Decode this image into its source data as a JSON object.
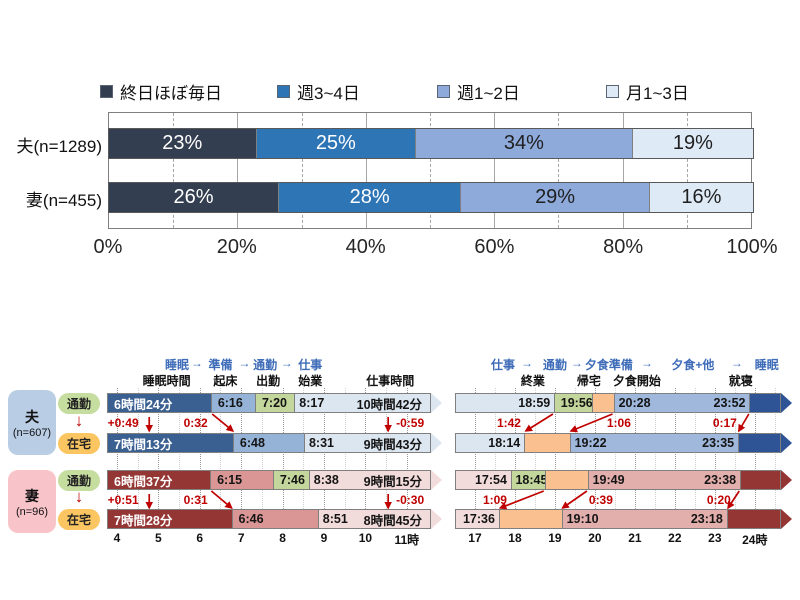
{
  "panel": {
    "modes": {
      "commute": "通勤",
      "home": "在宅"
    },
    "commute_color": "#C6DDA0",
    "home_color": "#FBC661",
    "arrow_color": "#C00000",
    "groups": [
      {
        "name": "夫",
        "n": "(n=607)",
        "color": "#B9CDE5"
      },
      {
        "name": "妻",
        "n": "(n=96)",
        "color": "#F8C3C9"
      }
    ]
  },
  "chart_data": [
    {
      "type": "bar",
      "orientation": "horizontal-stacked",
      "categories": [
        "夫(n=1289)",
        "妻(n=455)"
      ],
      "series": [
        {
          "name": "終日ほぼ毎日",
          "color": "#333F50",
          "text_color": "#FFFFFF",
          "values": [
            23,
            26
          ]
        },
        {
          "name": "週3~4日",
          "color": "#2E75B6",
          "text_color": "#FFFFFF",
          "values": [
            25,
            28
          ]
        },
        {
          "name": "週1~2日",
          "color": "#8EAADB",
          "text_color": "#1F1F1F",
          "values": [
            34,
            29
          ]
        },
        {
          "name": "月1~3日",
          "color": "#DEEAF6",
          "text_color": "#1F1F1F",
          "values": [
            19,
            16
          ]
        }
      ],
      "value_suffix": "%",
      "x_ticks": [
        "0%",
        "20%",
        "40%",
        "60%",
        "80%",
        "100%"
      ],
      "xlim": [
        0,
        100
      ],
      "legend_position": "top",
      "gridlines": "10%-dashed-20%-solid"
    },
    {
      "type": "timeline",
      "id": "morning",
      "stage_header": [
        {
          "text": "睡眠",
          "t": 5.45
        },
        {
          "text": "→",
          "t": 5.93
        },
        {
          "text": "準備",
          "t": 6.5
        },
        {
          "text": "→",
          "t": 7.08
        },
        {
          "text": "通勤",
          "t": 7.58
        },
        {
          "text": "→",
          "t": 8.1
        },
        {
          "text": "仕事",
          "t": 8.67
        }
      ],
      "col_labels": [
        {
          "text": "睡眠時間",
          "t": 5.2
        },
        {
          "text": "起床",
          "t": 6.62
        },
        {
          "text": "出勤",
          "t": 7.65
        },
        {
          "text": "始業",
          "t": 8.67
        },
        {
          "text": "仕事時間",
          "t": 10.6
        }
      ],
      "axis": {
        "min": 3.76,
        "max": 11.56,
        "ticks": [
          {
            "t": 4,
            "label": "4"
          },
          {
            "t": 5,
            "label": "5"
          },
          {
            "t": 6,
            "label": "6"
          },
          {
            "t": 7,
            "label": "7"
          },
          {
            "t": 8,
            "label": "8"
          },
          {
            "t": 9,
            "label": "9"
          },
          {
            "t": 10,
            "label": "10"
          },
          {
            "t": 11,
            "label": "11時"
          }
        ]
      },
      "rows": [
        {
          "group": "夫",
          "mode": "通勤",
          "segments": [
            {
              "t0": 3.76,
              "t1": 6.267,
              "color": "#3A5F91",
              "text_color": "#FFFFFF",
              "labels": [
                {
                  "text": "6時間24分",
                  "side": "left"
                }
              ]
            },
            {
              "t0": 6.267,
              "t1": 7.333,
              "color": "#95B3D7",
              "labels": [
                {
                  "text": "6:16",
                  "side": "left"
                }
              ]
            },
            {
              "t0": 7.333,
              "t1": 8.283,
              "color": "#C3D69B",
              "labels": [
                {
                  "text": "7:20",
                  "side": "left"
                }
              ]
            },
            {
              "t0": 8.283,
              "t1": 11.56,
              "color": "#DCE6F1",
              "tip": true,
              "labels": [
                {
                  "text": "8:17",
                  "side": "left"
                },
                {
                  "text": "10時間42分",
                  "side": "right"
                }
              ]
            }
          ]
        },
        {
          "group": "夫",
          "mode": "在宅",
          "segments": [
            {
              "t0": 3.76,
              "t1": 6.8,
              "color": "#3A5F91",
              "text_color": "#FFFFFF",
              "labels": [
                {
                  "text": "7時間13分",
                  "side": "left"
                }
              ]
            },
            {
              "t0": 6.8,
              "t1": 8.517,
              "color": "#95B3D7",
              "labels": [
                {
                  "text": "6:48",
                  "side": "left"
                }
              ]
            },
            {
              "t0": 8.517,
              "t1": 11.56,
              "color": "#DCE6F1",
              "tip": true,
              "labels": [
                {
                  "text": "8:31",
                  "side": "left"
                },
                {
                  "text": "9時間43分",
                  "side": "right"
                }
              ]
            }
          ]
        },
        {
          "group": "妻",
          "mode": "通勤",
          "segments": [
            {
              "t0": 3.76,
              "t1": 6.25,
              "color": "#943634",
              "text_color": "#FFFFFF",
              "labels": [
                {
                  "text": "6時間37分",
                  "side": "left"
                }
              ]
            },
            {
              "t0": 6.25,
              "t1": 7.767,
              "color": "#D99694",
              "labels": [
                {
                  "text": "6:15",
                  "side": "left"
                }
              ]
            },
            {
              "t0": 7.767,
              "t1": 8.633,
              "color": "#C3D69B",
              "labels": [
                {
                  "text": "7:46",
                  "side": "left"
                }
              ]
            },
            {
              "t0": 8.633,
              "t1": 11.56,
              "color": "#F2DCDB",
              "tip": true,
              "labels": [
                {
                  "text": "8:38",
                  "side": "left"
                },
                {
                  "text": "9時間15分",
                  "side": "right"
                }
              ]
            }
          ]
        },
        {
          "group": "妻",
          "mode": "在宅",
          "segments": [
            {
              "t0": 3.76,
              "t1": 6.767,
              "color": "#943634",
              "text_color": "#FFFFFF",
              "labels": [
                {
                  "text": "7時間28分",
                  "side": "left"
                }
              ]
            },
            {
              "t0": 6.767,
              "t1": 8.85,
              "color": "#D99694",
              "labels": [
                {
                  "text": "6:46",
                  "side": "left"
                }
              ]
            },
            {
              "t0": 8.85,
              "t1": 11.56,
              "color": "#F2DCDB",
              "tip": true,
              "labels": [
                {
                  "text": "8:51",
                  "side": "left"
                },
                {
                  "text": "8時間45分",
                  "side": "right"
                }
              ]
            }
          ]
        }
      ],
      "annotations": [
        {
          "gap": 0,
          "text": "+0:49",
          "t": 4.15,
          "arrow": {
            "t0": 4.78,
            "t1": 4.78
          }
        },
        {
          "gap": 0,
          "text": "0:32",
          "t": 5.9,
          "arrow": {
            "t0": 6.3,
            "t1": 6.8
          }
        },
        {
          "gap": 0,
          "text": "-0:59",
          "t": 11.08,
          "arrow": {
            "t0": 10.55,
            "t1": 10.55
          }
        },
        {
          "gap": 1,
          "text": "+0:51",
          "t": 4.15,
          "arrow": {
            "t0": 4.78,
            "t1": 4.78
          }
        },
        {
          "gap": 1,
          "text": "0:31",
          "t": 5.9,
          "arrow": {
            "t0": 6.28,
            "t1": 6.77
          }
        },
        {
          "gap": 1,
          "text": "-0:30",
          "t": 11.08,
          "arrow": {
            "t0": 10.55,
            "t1": 10.55
          }
        }
      ]
    },
    {
      "type": "timeline",
      "id": "evening",
      "stage_header": [
        {
          "text": "仕事",
          "t": 17.7
        },
        {
          "text": "→",
          "t": 18.3
        },
        {
          "text": "通勤",
          "t": 19.0
        },
        {
          "text": "→",
          "t": 19.55
        },
        {
          "text": "夕食準備",
          "t": 20.35
        },
        {
          "text": "→",
          "t": 21.3
        },
        {
          "text": "夕食+他",
          "t": 22.45
        },
        {
          "text": "→",
          "t": 23.55
        },
        {
          "text": "睡眠",
          "t": 24.3
        }
      ],
      "col_labels": [
        {
          "text": "終業",
          "t": 18.45
        },
        {
          "text": "帰宅",
          "t": 19.85
        },
        {
          "text": "夕食開始",
          "t": 21.05
        },
        {
          "text": "就寝",
          "t": 23.65
        }
      ],
      "axis": {
        "min": 16.5,
        "max": 24.63,
        "ticks": [
          {
            "t": 17,
            "label": "17"
          },
          {
            "t": 18,
            "label": "18"
          },
          {
            "t": 19,
            "label": "19"
          },
          {
            "t": 20,
            "label": "20"
          },
          {
            "t": 21,
            "label": "21"
          },
          {
            "t": 22,
            "label": "22"
          },
          {
            "t": 23,
            "label": "23"
          },
          {
            "t": 24,
            "label": "24時"
          }
        ]
      },
      "rows": [
        {
          "group": "夫",
          "mode": "通勤",
          "segments": [
            {
              "t0": 16.5,
              "t1": 18.983,
              "color": "#DCE6F1",
              "labels": [
                {
                  "text": "18:59",
                  "side": "right"
                }
              ]
            },
            {
              "t0": 18.983,
              "t1": 19.933,
              "color": "#C3D69B",
              "labels": [
                {
                  "text": "19:56",
                  "side": "center"
                }
              ]
            },
            {
              "t0": 19.933,
              "t1": 20.467,
              "color": "#FAC090",
              "labels": []
            },
            {
              "t0": 20.467,
              "t1": 23.867,
              "color": "#9FB8DB",
              "labels": [
                {
                  "text": "20:28",
                  "side": "left"
                },
                {
                  "text": "23:52",
                  "side": "right"
                }
              ]
            },
            {
              "t0": 23.867,
              "t1": 24.63,
              "color": "#2F5496",
              "tip": true,
              "labels": []
            }
          ]
        },
        {
          "group": "夫",
          "mode": "在宅",
          "segments": [
            {
              "t0": 16.5,
              "t1": 18.233,
              "color": "#DCE6F1",
              "labels": [
                {
                  "text": "18:14",
                  "side": "right"
                }
              ]
            },
            {
              "t0": 18.233,
              "t1": 19.367,
              "color": "#FAC090",
              "labels": []
            },
            {
              "t0": 19.367,
              "t1": 23.583,
              "color": "#9FB8DB",
              "labels": [
                {
                  "text": "19:22",
                  "side": "left"
                },
                {
                  "text": "23:35",
                  "side": "right"
                }
              ]
            },
            {
              "t0": 23.583,
              "t1": 24.63,
              "color": "#2F5496",
              "tip": true,
              "labels": []
            }
          ]
        },
        {
          "group": "妻",
          "mode": "通勤",
          "segments": [
            {
              "t0": 16.5,
              "t1": 17.9,
              "color": "#F2DCDB",
              "labels": [
                {
                  "text": "17:54",
                  "side": "right"
                }
              ]
            },
            {
              "t0": 17.9,
              "t1": 18.75,
              "color": "#C3D69B",
              "labels": [
                {
                  "text": "18:45",
                  "side": "center"
                }
              ]
            },
            {
              "t0": 18.75,
              "t1": 19.817,
              "color": "#FAC090",
              "labels": []
            },
            {
              "t0": 19.817,
              "t1": 23.633,
              "color": "#E2AFAD",
              "labels": [
                {
                  "text": "19:49",
                  "side": "left"
                },
                {
                  "text": "23:38",
                  "side": "right"
                }
              ]
            },
            {
              "t0": 23.633,
              "t1": 24.63,
              "color": "#943634",
              "tip": true,
              "labels": []
            }
          ]
        },
        {
          "group": "妻",
          "mode": "在宅",
          "segments": [
            {
              "t0": 16.5,
              "t1": 17.6,
              "color": "#F2DCDB",
              "labels": [
                {
                  "text": "17:36",
                  "side": "right"
                }
              ]
            },
            {
              "t0": 17.6,
              "t1": 19.167,
              "color": "#FAC090",
              "labels": []
            },
            {
              "t0": 19.167,
              "t1": 23.3,
              "color": "#E2AFAD",
              "labels": [
                {
                  "text": "19:10",
                  "side": "left"
                },
                {
                  "text": "23:18",
                  "side": "right"
                }
              ]
            },
            {
              "t0": 23.3,
              "t1": 24.63,
              "color": "#943634",
              "tip": true,
              "labels": []
            }
          ]
        }
      ],
      "annotations": [
        {
          "gap": 0,
          "text": "1:42",
          "t": 17.85,
          "arrow": {
            "t0": 18.95,
            "t1": 18.27
          }
        },
        {
          "gap": 0,
          "text": "1:06",
          "t": 20.6,
          "arrow": {
            "t0": 20.44,
            "t1": 19.4
          }
        },
        {
          "gap": 0,
          "text": "0:17",
          "t": 23.25,
          "arrow": {
            "t0": 23.85,
            "t1": 23.6
          }
        },
        {
          "gap": 1,
          "text": "1:09",
          "t": 17.5,
          "arrow": {
            "t0": 18.72,
            "t1": 17.63
          }
        },
        {
          "gap": 1,
          "text": "0:39",
          "t": 20.15,
          "arrow": {
            "t0": 19.8,
            "t1": 19.19
          }
        },
        {
          "gap": 1,
          "text": "0:20",
          "t": 23.1,
          "arrow": {
            "t0": 23.61,
            "t1": 23.33
          }
        }
      ]
    }
  ]
}
